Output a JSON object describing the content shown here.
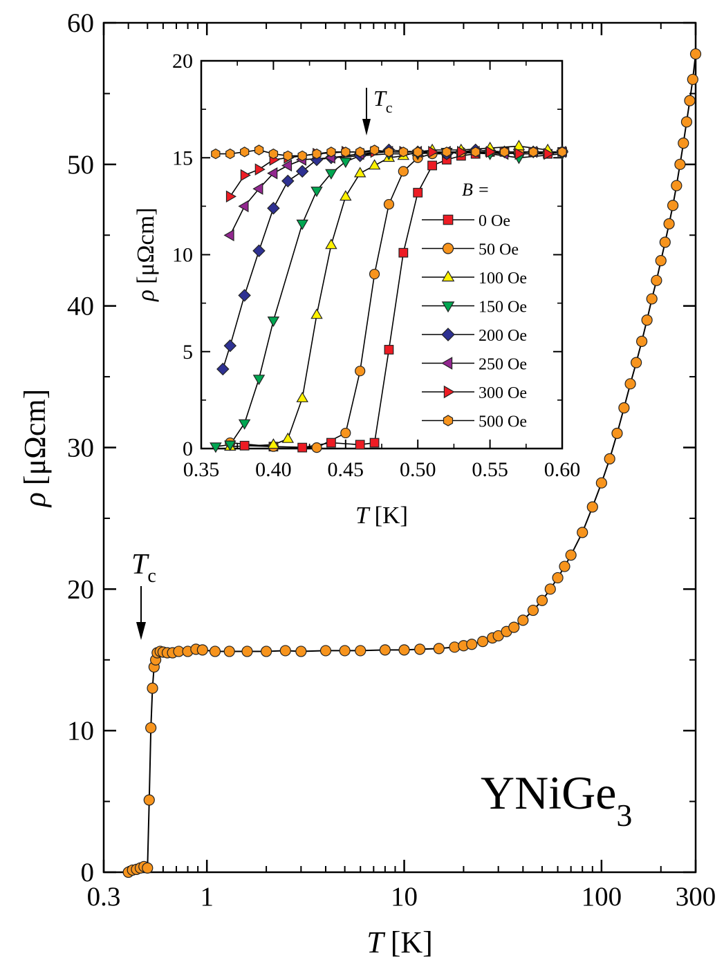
{
  "chart_data": [
    {
      "type": "scatter",
      "compound": {
        "main": "YNiGe",
        "sub": "3"
      },
      "xlabel": {
        "symbol": "T",
        "unit": "[K]"
      },
      "ylabel": {
        "symbol": "ρ",
        "unit": "[μΩcm]"
      },
      "xscale": "log",
      "xlim": [
        0.3,
        300
      ],
      "ylim": [
        0,
        60
      ],
      "xticks": [
        0.3,
        1,
        10,
        100,
        300
      ],
      "xtick_labels": [
        "0.3",
        "1",
        "10",
        "100",
        "300"
      ],
      "yticks": [
        0,
        10,
        20,
        30,
        40,
        50,
        60
      ],
      "ytick_labels": [
        "0",
        "10",
        "20",
        "30",
        "40",
        "50",
        "60"
      ],
      "grid": false,
      "annotation": {
        "symbol": "T",
        "sub": "c",
        "x": 0.5,
        "arrow": "down"
      },
      "series": [
        {
          "color": "#f7941d",
          "marker": "circle",
          "points": [
            [
              0.4,
              0.0
            ],
            [
              0.42,
              0.15
            ],
            [
              0.44,
              0.2
            ],
            [
              0.46,
              0.3
            ],
            [
              0.48,
              0.4
            ],
            [
              0.5,
              0.3
            ],
            [
              0.51,
              5.1
            ],
            [
              0.52,
              10.2
            ],
            [
              0.53,
              13.0
            ],
            [
              0.54,
              14.5
            ],
            [
              0.55,
              15.0
            ],
            [
              0.56,
              15.5
            ],
            [
              0.58,
              15.6
            ],
            [
              0.6,
              15.55
            ],
            [
              0.63,
              15.5
            ],
            [
              0.67,
              15.5
            ],
            [
              0.72,
              15.6
            ],
            [
              0.8,
              15.6
            ],
            [
              0.88,
              15.75
            ],
            [
              0.95,
              15.7
            ],
            [
              1.1,
              15.6
            ],
            [
              1.3,
              15.6
            ],
            [
              1.6,
              15.6
            ],
            [
              2,
              15.6
            ],
            [
              2.5,
              15.65
            ],
            [
              3,
              15.6
            ],
            [
              4,
              15.65
            ],
            [
              5,
              15.65
            ],
            [
              6,
              15.65
            ],
            [
              8,
              15.7
            ],
            [
              10,
              15.7
            ],
            [
              12,
              15.75
            ],
            [
              15,
              15.8
            ],
            [
              18,
              15.9
            ],
            [
              20,
              16.0
            ],
            [
              22,
              16.1
            ],
            [
              25,
              16.3
            ],
            [
              28,
              16.55
            ],
            [
              30,
              16.7
            ],
            [
              33,
              17.0
            ],
            [
              36,
              17.3
            ],
            [
              40,
              17.8
            ],
            [
              45,
              18.5
            ],
            [
              50,
              19.2
            ],
            [
              55,
              20.0
            ],
            [
              60,
              20.8
            ],
            [
              65,
              21.6
            ],
            [
              70,
              22.4
            ],
            [
              80,
              24.0
            ],
            [
              90,
              25.8
            ],
            [
              100,
              27.5
            ],
            [
              110,
              29.2
            ],
            [
              120,
              31.0
            ],
            [
              130,
              32.8
            ],
            [
              140,
              34.5
            ],
            [
              150,
              36.0
            ],
            [
              160,
              37.5
            ],
            [
              170,
              39.0
            ],
            [
              180,
              40.5
            ],
            [
              190,
              41.8
            ],
            [
              200,
              43.2
            ],
            [
              210,
              44.5
            ],
            [
              220,
              45.8
            ],
            [
              230,
              47.1
            ],
            [
              240,
              48.5
            ],
            [
              250,
              50.0
            ],
            [
              260,
              51.5
            ],
            [
              270,
              53.0
            ],
            [
              280,
              54.5
            ],
            [
              290,
              56.0
            ],
            [
              300,
              57.8
            ]
          ]
        }
      ]
    },
    {
      "type": "scatter",
      "inset": true,
      "xlabel": {
        "symbol": "T",
        "unit": "[K]"
      },
      "ylabel": {
        "symbol": "ρ",
        "unit": "[μΩcm]"
      },
      "xlim": [
        0.35,
        0.6
      ],
      "ylim": [
        0,
        20
      ],
      "xticks": [
        0.35,
        0.4,
        0.45,
        0.5,
        0.55,
        0.6
      ],
      "xtick_labels": [
        "0.35",
        "0.40",
        "0.45",
        "0.50",
        "0.55",
        "0.60"
      ],
      "yticks": [
        0,
        5,
        10,
        15,
        20
      ],
      "ytick_labels": [
        "0",
        "5",
        "10",
        "15",
        "20"
      ],
      "grid": false,
      "annotation": {
        "symbol": "T",
        "sub": "c",
        "x": 0.465,
        "arrow": "down"
      },
      "legend": {
        "title": "B =",
        "placement": "right"
      },
      "series": [
        {
          "name": "0 Oe",
          "color": "#ed1c24",
          "marker": "square",
          "points": [
            [
              0.38,
              0.15
            ],
            [
              0.4,
              0.1
            ],
            [
              0.42,
              0.05
            ],
            [
              0.44,
              0.3
            ],
            [
              0.46,
              0.2
            ],
            [
              0.47,
              0.3
            ],
            [
              0.48,
              5.1
            ],
            [
              0.49,
              10.1
            ],
            [
              0.5,
              13.2
            ],
            [
              0.51,
              14.6
            ],
            [
              0.52,
              14.9
            ],
            [
              0.53,
              15.1
            ],
            [
              0.54,
              15.2
            ],
            [
              0.55,
              15.3
            ],
            [
              0.56,
              15.3
            ],
            [
              0.57,
              15.3
            ],
            [
              0.58,
              15.3
            ],
            [
              0.59,
              15.2
            ],
            [
              0.6,
              15.3
            ]
          ]
        },
        {
          "name": "50 Oe",
          "color": "#f7941d",
          "marker": "circle",
          "points": [
            [
              0.37,
              0.3
            ],
            [
              0.4,
              0.1
            ],
            [
              0.43,
              0.05
            ],
            [
              0.45,
              0.8
            ],
            [
              0.46,
              4.0
            ],
            [
              0.47,
              9.0
            ],
            [
              0.48,
              12.6
            ],
            [
              0.49,
              14.3
            ],
            [
              0.5,
              15.0
            ],
            [
              0.51,
              15.2
            ],
            [
              0.52,
              15.2
            ],
            [
              0.53,
              15.3
            ],
            [
              0.55,
              15.3
            ],
            [
              0.57,
              15.3
            ],
            [
              0.6,
              15.3
            ]
          ]
        },
        {
          "name": "100 Oe",
          "color": "#fff200",
          "marker": "triangle-up",
          "points": [
            [
              0.37,
              0.1
            ],
            [
              0.4,
              0.2
            ],
            [
              0.41,
              0.5
            ],
            [
              0.42,
              2.6
            ],
            [
              0.43,
              6.9
            ],
            [
              0.44,
              10.5
            ],
            [
              0.45,
              13.0
            ],
            [
              0.46,
              14.2
            ],
            [
              0.47,
              14.6
            ],
            [
              0.48,
              15.0
            ],
            [
              0.49,
              15.1
            ],
            [
              0.5,
              15.3
            ],
            [
              0.51,
              15.4
            ],
            [
              0.53,
              15.4
            ],
            [
              0.55,
              15.5
            ],
            [
              0.57,
              15.6
            ],
            [
              0.59,
              15.4
            ]
          ]
        },
        {
          "name": "150 Oe",
          "color": "#00a651",
          "marker": "triangle-down",
          "points": [
            [
              0.36,
              0.1
            ],
            [
              0.37,
              0.2
            ],
            [
              0.38,
              1.3
            ],
            [
              0.39,
              3.6
            ],
            [
              0.4,
              6.6
            ],
            [
              0.42,
              11.6
            ],
            [
              0.43,
              13.3
            ],
            [
              0.44,
              14.2
            ],
            [
              0.45,
              14.8
            ],
            [
              0.46,
              15.1
            ],
            [
              0.48,
              15.2
            ],
            [
              0.5,
              15.2
            ],
            [
              0.52,
              15.3
            ],
            [
              0.55,
              15.2
            ],
            [
              0.57,
              15.0
            ],
            [
              0.6,
              15.2
            ]
          ]
        },
        {
          "name": "200 Oe",
          "color": "#2e3192",
          "marker": "diamond",
          "points": [
            [
              0.365,
              4.1
            ],
            [
              0.37,
              5.3
            ],
            [
              0.38,
              7.9
            ],
            [
              0.39,
              10.2
            ],
            [
              0.4,
              12.4
            ],
            [
              0.41,
              13.8
            ],
            [
              0.42,
              14.3
            ],
            [
              0.43,
              14.9
            ],
            [
              0.44,
              15.0
            ],
            [
              0.46,
              15.1
            ],
            [
              0.48,
              15.4
            ],
            [
              0.5,
              15.3
            ],
            [
              0.52,
              15.2
            ],
            [
              0.54,
              15.4
            ],
            [
              0.56,
              15.3
            ],
            [
              0.58,
              15.3
            ],
            [
              0.6,
              15.3
            ]
          ]
        },
        {
          "name": "250 Oe",
          "color": "#92278f",
          "marker": "triangle-left",
          "points": [
            [
              0.37,
              11.0
            ],
            [
              0.38,
              12.5
            ],
            [
              0.39,
              13.4
            ],
            [
              0.4,
              14.2
            ],
            [
              0.41,
              14.6
            ],
            [
              0.42,
              14.9
            ],
            [
              0.44,
              15.0
            ],
            [
              0.46,
              15.2
            ],
            [
              0.48,
              15.3
            ],
            [
              0.5,
              15.3
            ],
            [
              0.52,
              15.3
            ],
            [
              0.54,
              15.3
            ],
            [
              0.56,
              15.2
            ],
            [
              0.58,
              15.3
            ],
            [
              0.6,
              15.3
            ]
          ]
        },
        {
          "name": "300 Oe",
          "color": "#ed1c24",
          "marker": "triangle-right",
          "points": [
            [
              0.37,
              13.0
            ],
            [
              0.38,
              14.1
            ],
            [
              0.39,
              14.4
            ],
            [
              0.4,
              14.9
            ],
            [
              0.41,
              15.0
            ],
            [
              0.43,
              15.2
            ],
            [
              0.45,
              15.3
            ],
            [
              0.47,
              15.3
            ],
            [
              0.49,
              15.3
            ],
            [
              0.51,
              15.3
            ],
            [
              0.53,
              15.3
            ],
            [
              0.55,
              15.3
            ],
            [
              0.57,
              15.2
            ],
            [
              0.59,
              15.2
            ]
          ]
        },
        {
          "name": "500 Oe",
          "color": "#f7941d",
          "marker": "hexagon",
          "points": [
            [
              0.36,
              15.2
            ],
            [
              0.37,
              15.2
            ],
            [
              0.38,
              15.3
            ],
            [
              0.39,
              15.4
            ],
            [
              0.4,
              15.2
            ],
            [
              0.41,
              15.1
            ],
            [
              0.42,
              15.1
            ],
            [
              0.43,
              15.2
            ],
            [
              0.44,
              15.3
            ],
            [
              0.45,
              15.3
            ],
            [
              0.46,
              15.3
            ],
            [
              0.47,
              15.4
            ],
            [
              0.48,
              15.3
            ],
            [
              0.49,
              15.3
            ],
            [
              0.5,
              15.3
            ],
            [
              0.52,
              15.3
            ],
            [
              0.54,
              15.3
            ],
            [
              0.56,
              15.3
            ],
            [
              0.58,
              15.3
            ],
            [
              0.6,
              15.3
            ]
          ]
        }
      ]
    }
  ]
}
